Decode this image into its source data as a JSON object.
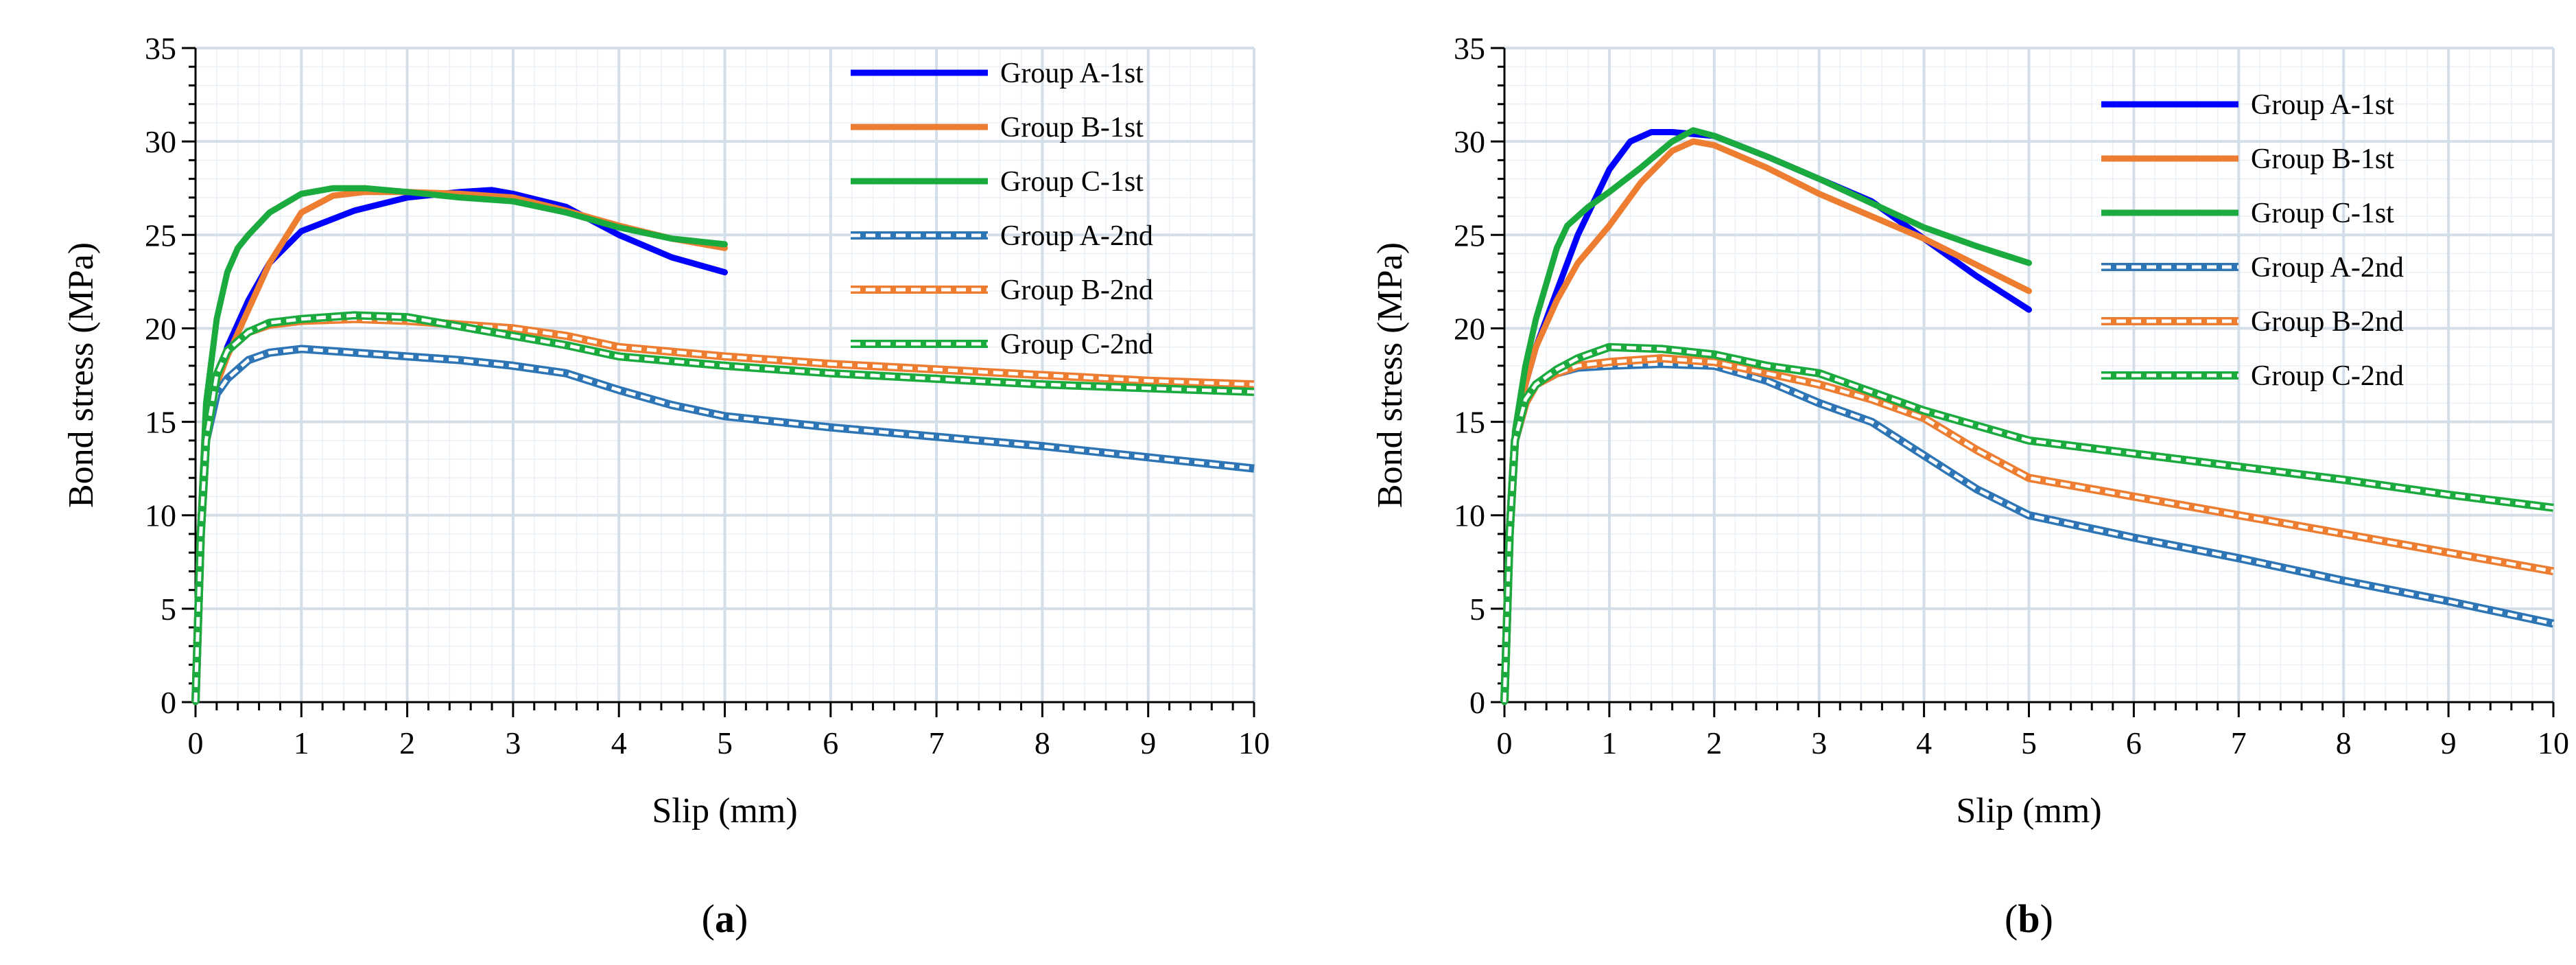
{
  "chart_data": [
    {
      "type": "line",
      "panel_label": "a",
      "xlabel": "Slip (mm)",
      "ylabel": "Bond stress (MPa)",
      "xlim": [
        0,
        10
      ],
      "ylim": [
        0,
        35
      ],
      "xticks": [
        0,
        1,
        2,
        3,
        4,
        5,
        6,
        7,
        8,
        9,
        10
      ],
      "yticks": [
        0,
        5,
        10,
        15,
        20,
        25,
        30,
        35
      ],
      "grid": true,
      "legend": "top-right",
      "series": [
        {
          "name": "Group A-1st",
          "color": "#0000FF",
          "dashed": false,
          "x": [
            0,
            0.05,
            0.1,
            0.2,
            0.3,
            0.5,
            0.7,
            1,
            1.5,
            2,
            2.5,
            2.8,
            3,
            3.5,
            4,
            4.5,
            5
          ],
          "y": [
            0,
            9,
            14,
            17,
            19,
            21.5,
            23.5,
            25.2,
            26.3,
            27,
            27.3,
            27.4,
            27.2,
            26.5,
            25,
            23.8,
            23
          ]
        },
        {
          "name": "Group B-1st",
          "color": "#ED7D31",
          "dashed": false,
          "x": [
            0,
            0.05,
            0.1,
            0.2,
            0.3,
            0.5,
            0.7,
            1,
            1.3,
            1.6,
            2,
            2.5,
            3,
            3.5,
            4,
            4.5,
            5
          ],
          "y": [
            0,
            9,
            14,
            17,
            18.5,
            21,
            23.5,
            26.2,
            27.1,
            27.3,
            27.3,
            27.2,
            27,
            26.3,
            25.5,
            24.8,
            24.3
          ]
        },
        {
          "name": "Group C-1st",
          "color": "#1AAA3E",
          "dashed": false,
          "x": [
            0,
            0.05,
            0.1,
            0.2,
            0.3,
            0.4,
            0.5,
            0.7,
            1,
            1.3,
            1.6,
            2,
            2.5,
            3,
            3.5,
            4,
            4.5,
            5
          ],
          "y": [
            0,
            10,
            16,
            20.5,
            23,
            24.3,
            25,
            26.2,
            27.2,
            27.5,
            27.5,
            27.3,
            27,
            26.8,
            26.2,
            25.4,
            24.8,
            24.5
          ]
        },
        {
          "name": "Group A-2nd",
          "color": "#2E75B6",
          "dashed": true,
          "x": [
            0,
            0.05,
            0.1,
            0.2,
            0.3,
            0.5,
            0.7,
            1,
            1.5,
            2,
            2.5,
            3,
            3.5,
            4,
            4.5,
            5,
            6,
            7,
            8,
            9,
            10
          ],
          "y": [
            0,
            9,
            14,
            16.5,
            17.3,
            18.3,
            18.7,
            18.9,
            18.7,
            18.5,
            18.3,
            18,
            17.6,
            16.7,
            15.9,
            15.3,
            14.7,
            14.2,
            13.7,
            13.1,
            12.5
          ]
        },
        {
          "name": "Group B-2nd",
          "color": "#ED7D31",
          "dashed": true,
          "x": [
            0,
            0.05,
            0.1,
            0.2,
            0.3,
            0.5,
            0.7,
            1,
            1.5,
            2,
            2.5,
            3,
            3.5,
            4,
            5,
            6,
            7,
            8,
            9,
            10
          ],
          "y": [
            0,
            9,
            14,
            17.5,
            18.8,
            19.8,
            20.2,
            20.4,
            20.5,
            20.4,
            20.2,
            20,
            19.6,
            19,
            18.5,
            18.1,
            17.8,
            17.5,
            17.2,
            17
          ]
        },
        {
          "name": "Group C-2nd",
          "color": "#1AAA3E",
          "dashed": true,
          "x": [
            0,
            0.05,
            0.1,
            0.2,
            0.3,
            0.5,
            0.7,
            1,
            1.5,
            2,
            2.5,
            3,
            3.5,
            4,
            5,
            6,
            7,
            8,
            9,
            10
          ],
          "y": [
            0,
            9,
            14,
            17.5,
            18.8,
            19.8,
            20.3,
            20.5,
            20.7,
            20.6,
            20.1,
            19.6,
            19.1,
            18.5,
            18,
            17.6,
            17.3,
            17,
            16.8,
            16.6
          ]
        }
      ]
    },
    {
      "type": "line",
      "panel_label": "b",
      "xlabel": "Slip (mm)",
      "ylabel": "Bond stress (MPa)",
      "xlim": [
        0,
        10
      ],
      "ylim": [
        0,
        35
      ],
      "xticks": [
        0,
        1,
        2,
        3,
        4,
        5,
        6,
        7,
        8,
        9,
        10
      ],
      "yticks": [
        0,
        5,
        10,
        15,
        20,
        25,
        30,
        35
      ],
      "grid": true,
      "legend": "top-right",
      "series": [
        {
          "name": "Group A-1st",
          "color": "#0000FF",
          "dashed": false,
          "x": [
            0,
            0.05,
            0.1,
            0.2,
            0.3,
            0.5,
            0.7,
            1,
            1.2,
            1.4,
            1.6,
            2,
            2.5,
            3,
            3.5,
            4,
            4.5,
            5
          ],
          "y": [
            0,
            10,
            14,
            17,
            19,
            22,
            25,
            28.5,
            30,
            30.5,
            30.5,
            30.3,
            29.2,
            28,
            26.8,
            24.8,
            22.8,
            21
          ]
        },
        {
          "name": "Group B-1st",
          "color": "#ED7D31",
          "dashed": false,
          "x": [
            0,
            0.05,
            0.1,
            0.2,
            0.3,
            0.5,
            0.7,
            1,
            1.3,
            1.6,
            1.8,
            2,
            2.5,
            3,
            3.5,
            4,
            4.5,
            5
          ],
          "y": [
            0,
            10,
            14,
            17,
            19,
            21.5,
            23.5,
            25.5,
            27.8,
            29.5,
            30,
            29.8,
            28.6,
            27.2,
            26,
            24.8,
            23.4,
            22
          ]
        },
        {
          "name": "Group C-1st",
          "color": "#1AAA3E",
          "dashed": false,
          "x": [
            0,
            0.05,
            0.1,
            0.2,
            0.3,
            0.5,
            0.6,
            0.8,
            1,
            1.3,
            1.6,
            1.8,
            2,
            2.5,
            3,
            3.5,
            4,
            4.5,
            5
          ],
          "y": [
            0,
            10,
            14.5,
            18,
            20.5,
            24.3,
            25.5,
            26.5,
            27.3,
            28.6,
            30,
            30.6,
            30.3,
            29.2,
            28,
            26.7,
            25.4,
            24.4,
            23.5
          ]
        },
        {
          "name": "Group A-2nd",
          "color": "#2E75B6",
          "dashed": true,
          "x": [
            0,
            0.05,
            0.1,
            0.2,
            0.3,
            0.5,
            0.7,
            1,
            1.5,
            2,
            2.5,
            3,
            3.5,
            4,
            4.5,
            5,
            6,
            7,
            8,
            9,
            10
          ],
          "y": [
            0,
            9,
            14,
            16,
            17,
            17.6,
            17.9,
            18,
            18.1,
            18,
            17.2,
            16,
            15,
            13.2,
            11.4,
            10,
            8.8,
            7.7,
            6.5,
            5.4,
            4.2
          ]
        },
        {
          "name": "Group B-2nd",
          "color": "#ED7D31",
          "dashed": true,
          "x": [
            0,
            0.05,
            0.1,
            0.2,
            0.3,
            0.5,
            0.7,
            1,
            1.5,
            2,
            2.5,
            3,
            3.5,
            4,
            4.5,
            5,
            6,
            7,
            8,
            9,
            10
          ],
          "y": [
            0,
            9,
            14,
            16,
            17,
            17.6,
            18,
            18.2,
            18.4,
            18.2,
            17.6,
            17,
            16.2,
            15.2,
            13.5,
            12,
            11,
            10,
            9,
            8,
            7
          ]
        },
        {
          "name": "Group C-2nd",
          "color": "#1AAA3E",
          "dashed": true,
          "x": [
            0,
            0.05,
            0.1,
            0.2,
            0.3,
            0.5,
            0.7,
            1,
            1.5,
            2,
            2.5,
            3,
            3.5,
            4,
            4.5,
            5,
            6,
            7,
            8,
            9,
            10
          ],
          "y": [
            0,
            9,
            14,
            16.2,
            17,
            17.8,
            18.4,
            19,
            18.9,
            18.6,
            18,
            17.6,
            16.6,
            15.6,
            14.8,
            14,
            13.3,
            12.6,
            11.9,
            11.1,
            10.4
          ]
        }
      ]
    }
  ]
}
